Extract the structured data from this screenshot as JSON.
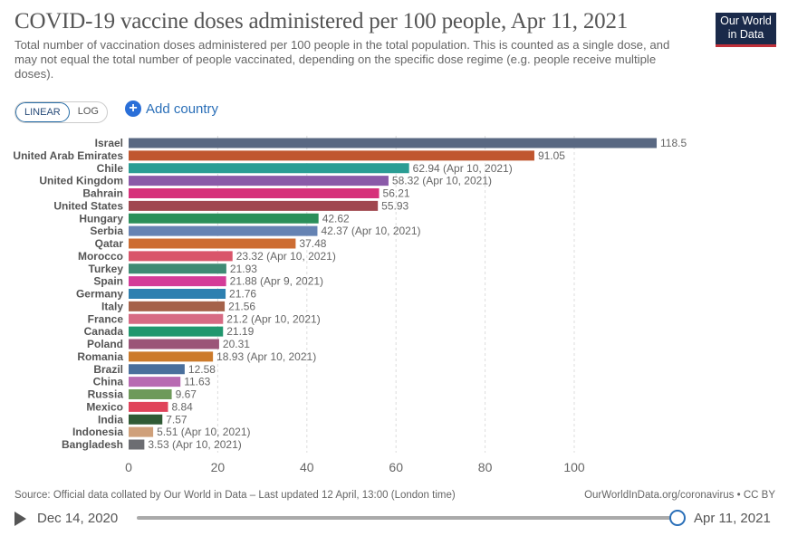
{
  "header": {
    "title": "COVID-19 vaccine doses administered per 100 people, Apr 11, 2021",
    "subtitle": "Total number of vaccination doses administered per 100 people in the total population. This is counted as a single dose, and may not equal the total number of people vaccinated, depending on the specific dose regime (e.g. people receive multiple doses).",
    "logo": "Our World in Data"
  },
  "controls": {
    "linear": "LINEAR",
    "log": "LOG",
    "add_country": "Add country"
  },
  "chart_data": {
    "type": "bar",
    "orientation": "horizontal",
    "title": "COVID-19 vaccine doses administered per 100 people, Apr 11, 2021",
    "xlim": [
      0,
      120
    ],
    "xticks": [
      0,
      20,
      40,
      60,
      80,
      100
    ],
    "grid": true,
    "categories": [
      "Israel",
      "United Arab Emirates",
      "Chile",
      "United Kingdom",
      "Bahrain",
      "United States",
      "Hungary",
      "Serbia",
      "Qatar",
      "Morocco",
      "Turkey",
      "Spain",
      "Germany",
      "Italy",
      "France",
      "Canada",
      "Poland",
      "Romania",
      "Brazil",
      "China",
      "Russia",
      "Mexico",
      "India",
      "Indonesia",
      "Bangladesh"
    ],
    "values": [
      118.5,
      91.05,
      62.94,
      58.32,
      56.21,
      55.93,
      42.62,
      42.37,
      37.48,
      23.32,
      21.93,
      21.88,
      21.76,
      21.56,
      21.2,
      21.19,
      20.31,
      18.93,
      12.58,
      11.63,
      9.67,
      8.84,
      7.57,
      5.51,
      3.53
    ],
    "labels": [
      "118.5",
      "91.05",
      "62.94 (Apr 10, 2021)",
      "58.32 (Apr 10, 2021)",
      "56.21",
      "55.93",
      "42.62",
      "42.37 (Apr 10, 2021)",
      "37.48",
      "23.32 (Apr 10, 2021)",
      "21.93",
      "21.88 (Apr 9, 2021)",
      "21.76",
      "21.56",
      "21.2 (Apr 10, 2021)",
      "21.19",
      "20.31",
      "18.93 (Apr 10, 2021)",
      "12.58",
      "11.63",
      "9.67",
      "8.84",
      "7.57",
      "5.51 (Apr 10, 2021)",
      "3.53 (Apr 10, 2021)"
    ],
    "colors": [
      "#596882",
      "#c0562f",
      "#2a9d94",
      "#8a5aa8",
      "#d6317a",
      "#a0474f",
      "#2a8f5a",
      "#6583b3",
      "#cd6d33",
      "#d9556a",
      "#3f8a74",
      "#d43c98",
      "#2e80b0",
      "#a5624a",
      "#d76b84",
      "#21976e",
      "#9b5578",
      "#cc7a2a",
      "#4a6f9c",
      "#b86ab2",
      "#6e9a5a",
      "#e0435a",
      "#2f5a34",
      "#cfa07a",
      "#6c6d72"
    ]
  },
  "footer": {
    "source": "Source: Official data collated by Our World in Data – Last updated 12 April, 13:00 (London time)",
    "url": "OurWorldInData.org/coronavirus • CC BY"
  },
  "timeline": {
    "start": "Dec 14, 2020",
    "end": "Apr 11, 2021",
    "position": 1.0
  }
}
